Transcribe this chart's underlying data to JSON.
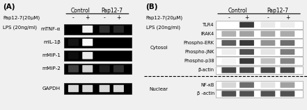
{
  "background_color": "#f0f0f0",
  "panel_A": {
    "label": "(A)",
    "header_line1": "Pap12-7(20μM)",
    "header_line2": "LPS (20ng/ml)",
    "col_header1": "Control",
    "col_header2": "Pap12-7",
    "col_subheaders": [
      "-",
      "+",
      "-",
      "+"
    ],
    "row_labels": [
      "mTNF-α",
      "mIL-1β",
      "mMIP-1",
      "mMIP-2",
      "GAPDH"
    ],
    "bands": {
      "mTNF-α": [
        0.0,
        0.95,
        0.18,
        0.15
      ],
      "mIL-1β": [
        0.08,
        0.98,
        0.0,
        0.0
      ],
      "mMIP-1": [
        0.05,
        0.92,
        0.0,
        0.0
      ],
      "mMIP-2": [
        0.25,
        0.82,
        0.12,
        0.18
      ],
      "GAPDH": [
        0.85,
        0.85,
        0.85,
        0.85
      ]
    }
  },
  "panel_B": {
    "label": "(B)",
    "header_line1": "Pap12-7(20μM)",
    "header_line2": "LPS (20ng/ml)",
    "col_header1": "Control",
    "col_header2": "Pap12-7",
    "col_subheaders": [
      "-",
      "+",
      "-",
      "+"
    ],
    "cytosol_label": "Cytosol",
    "nuclear_label": "Nuclear",
    "cytosol_rows": [
      "TLR4",
      "IRAK4",
      "Phospho-ERK",
      "Phospho-JNK",
      "Phospho-p38",
      "β-actin"
    ],
    "nuclear_rows": [
      "NF-κB",
      "β -actin"
    ],
    "cytosol_bands": {
      "TLR4": [
        0.0,
        0.88,
        0.1,
        0.08
      ],
      "IRAK4": [
        0.35,
        0.42,
        0.38,
        0.38
      ],
      "Phospho-ERK": [
        0.72,
        0.88,
        0.48,
        0.65
      ],
      "Phospho-JNK": [
        0.08,
        0.78,
        0.12,
        0.58
      ],
      "Phospho-p38": [
        0.05,
        0.88,
        0.28,
        0.55
      ],
      "β-actin": [
        0.82,
        0.82,
        0.82,
        0.82
      ]
    },
    "nuclear_bands": {
      "NF-κB": [
        0.18,
        0.65,
        0.12,
        0.42
      ],
      "β -actin": [
        0.78,
        0.78,
        0.78,
        0.78
      ]
    }
  }
}
